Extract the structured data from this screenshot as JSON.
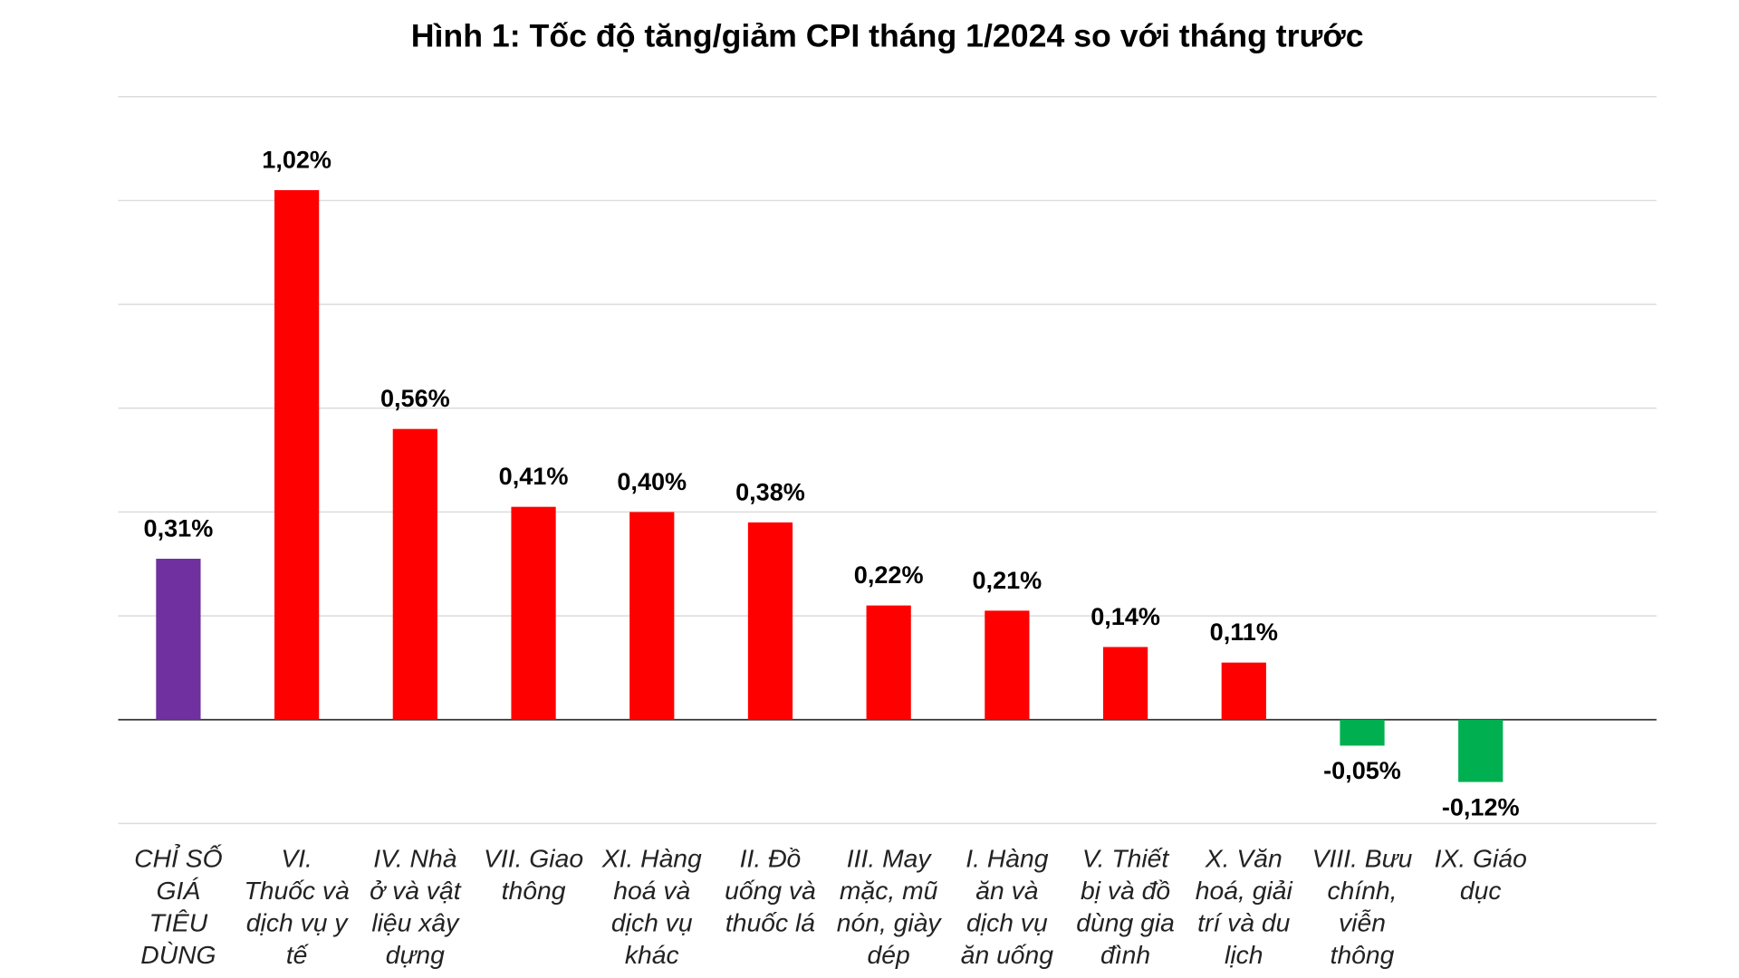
{
  "chart_data": {
    "type": "bar",
    "title": "Hình 1: Tốc độ tăng/giảm CPI tháng 1/2024 so với tháng trước",
    "xlabel": "",
    "ylabel": "",
    "ylim": [
      -0.2,
      1.2
    ],
    "grid": true,
    "ytick_step": 0.2,
    "categories": [
      [
        "CHỈ SỐ",
        "GIÁ",
        "TIÊU",
        "DÙNG"
      ],
      [
        "VI.",
        "Thuốc và",
        "dịch vụ y",
        "tế"
      ],
      [
        "IV. Nhà",
        "ở và vật",
        "liệu xây",
        "dựng"
      ],
      [
        "VII. Giao",
        "thông"
      ],
      [
        "XI. Hàng",
        "hoá và",
        "dịch vụ",
        "khác"
      ],
      [
        "II. Đồ",
        "uống và",
        "thuốc lá"
      ],
      [
        "III. May",
        "mặc, mũ",
        "nón, giày",
        "dép"
      ],
      [
        "I. Hàng",
        "ăn và",
        "dịch vụ",
        "ăn uống"
      ],
      [
        "V. Thiết",
        "bị và đồ",
        "dùng gia",
        "đình"
      ],
      [
        "X. Văn",
        "hoá, giải",
        "trí và du",
        "lịch"
      ],
      [
        "VIII. Bưu",
        "chính,",
        "viễn",
        "thông"
      ],
      [
        "IX. Giáo",
        "dục"
      ]
    ],
    "values": [
      0.31,
      1.02,
      0.56,
      0.41,
      0.4,
      0.38,
      0.22,
      0.21,
      0.14,
      0.11,
      -0.05,
      -0.12
    ],
    "data_labels": [
      "0,31%",
      "1,02%",
      "0,56%",
      "0,41%",
      "0,40%",
      "0,38%",
      "0,22%",
      "0,21%",
      "0,14%",
      "0,11%",
      "-0,05%",
      "-0,12%"
    ],
    "colors": {
      "total": "#7030a0",
      "positive": "#ff0000",
      "negative": "#00b050"
    }
  }
}
